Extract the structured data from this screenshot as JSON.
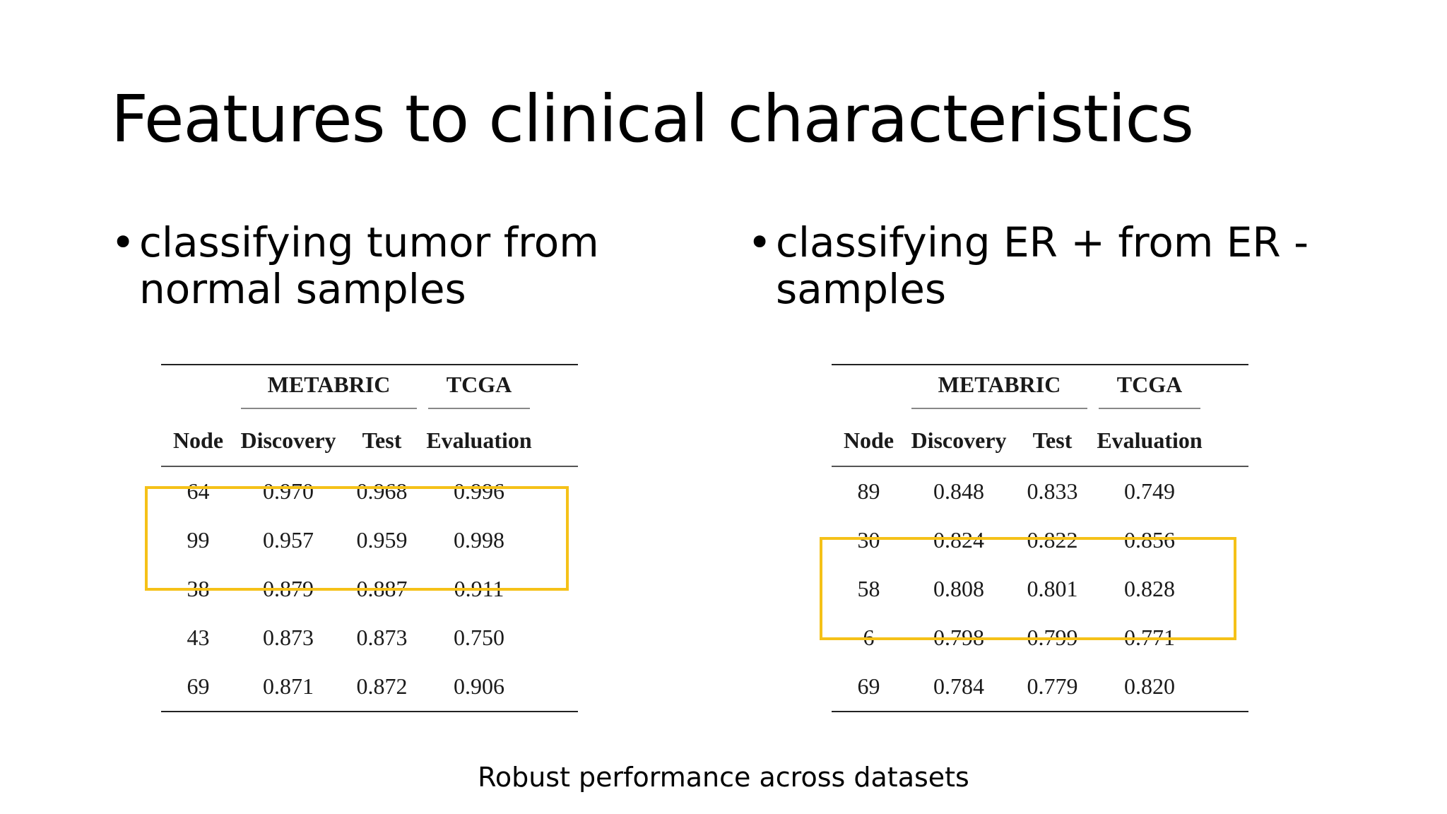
{
  "slide": {
    "title": "Features to clinical characteristics",
    "caption": "Robust performance across datasets"
  },
  "left": {
    "bullet_glyph": "•",
    "bullet": "classifying tumor from normal samples",
    "table": {
      "groups": [
        "METABRIC",
        "TCGA"
      ],
      "columns": [
        "Node",
        "Discovery",
        "Test",
        "Evaluation"
      ],
      "rows": [
        [
          "64",
          "0.970",
          "0.968",
          "0.996"
        ],
        [
          "99",
          "0.957",
          "0.959",
          "0.998"
        ],
        [
          "38",
          "0.879",
          "0.887",
          "0.911"
        ],
        [
          "43",
          "0.873",
          "0.873",
          "0.750"
        ],
        [
          "69",
          "0.871",
          "0.872",
          "0.906"
        ]
      ],
      "highlighted_rows": [
        1,
        2
      ],
      "highlight_color": "#f5c118"
    }
  },
  "right": {
    "bullet_glyph": "•",
    "bullet": "classifying ER + from ER - samples",
    "table": {
      "groups": [
        "METABRIC",
        "TCGA"
      ],
      "columns": [
        "Node",
        "Discovery",
        "Test",
        "Evaluation"
      ],
      "rows": [
        [
          "89",
          "0.848",
          "0.833",
          "0.749"
        ],
        [
          "30",
          "0.824",
          "0.822",
          "0.856"
        ],
        [
          "58",
          "0.808",
          "0.801",
          "0.828"
        ],
        [
          "6",
          "0.798",
          "0.799",
          "0.771"
        ],
        [
          "69",
          "0.784",
          "0.779",
          "0.820"
        ]
      ],
      "highlighted_rows": [
        2,
        3
      ],
      "highlight_color": "#f5c118"
    }
  }
}
